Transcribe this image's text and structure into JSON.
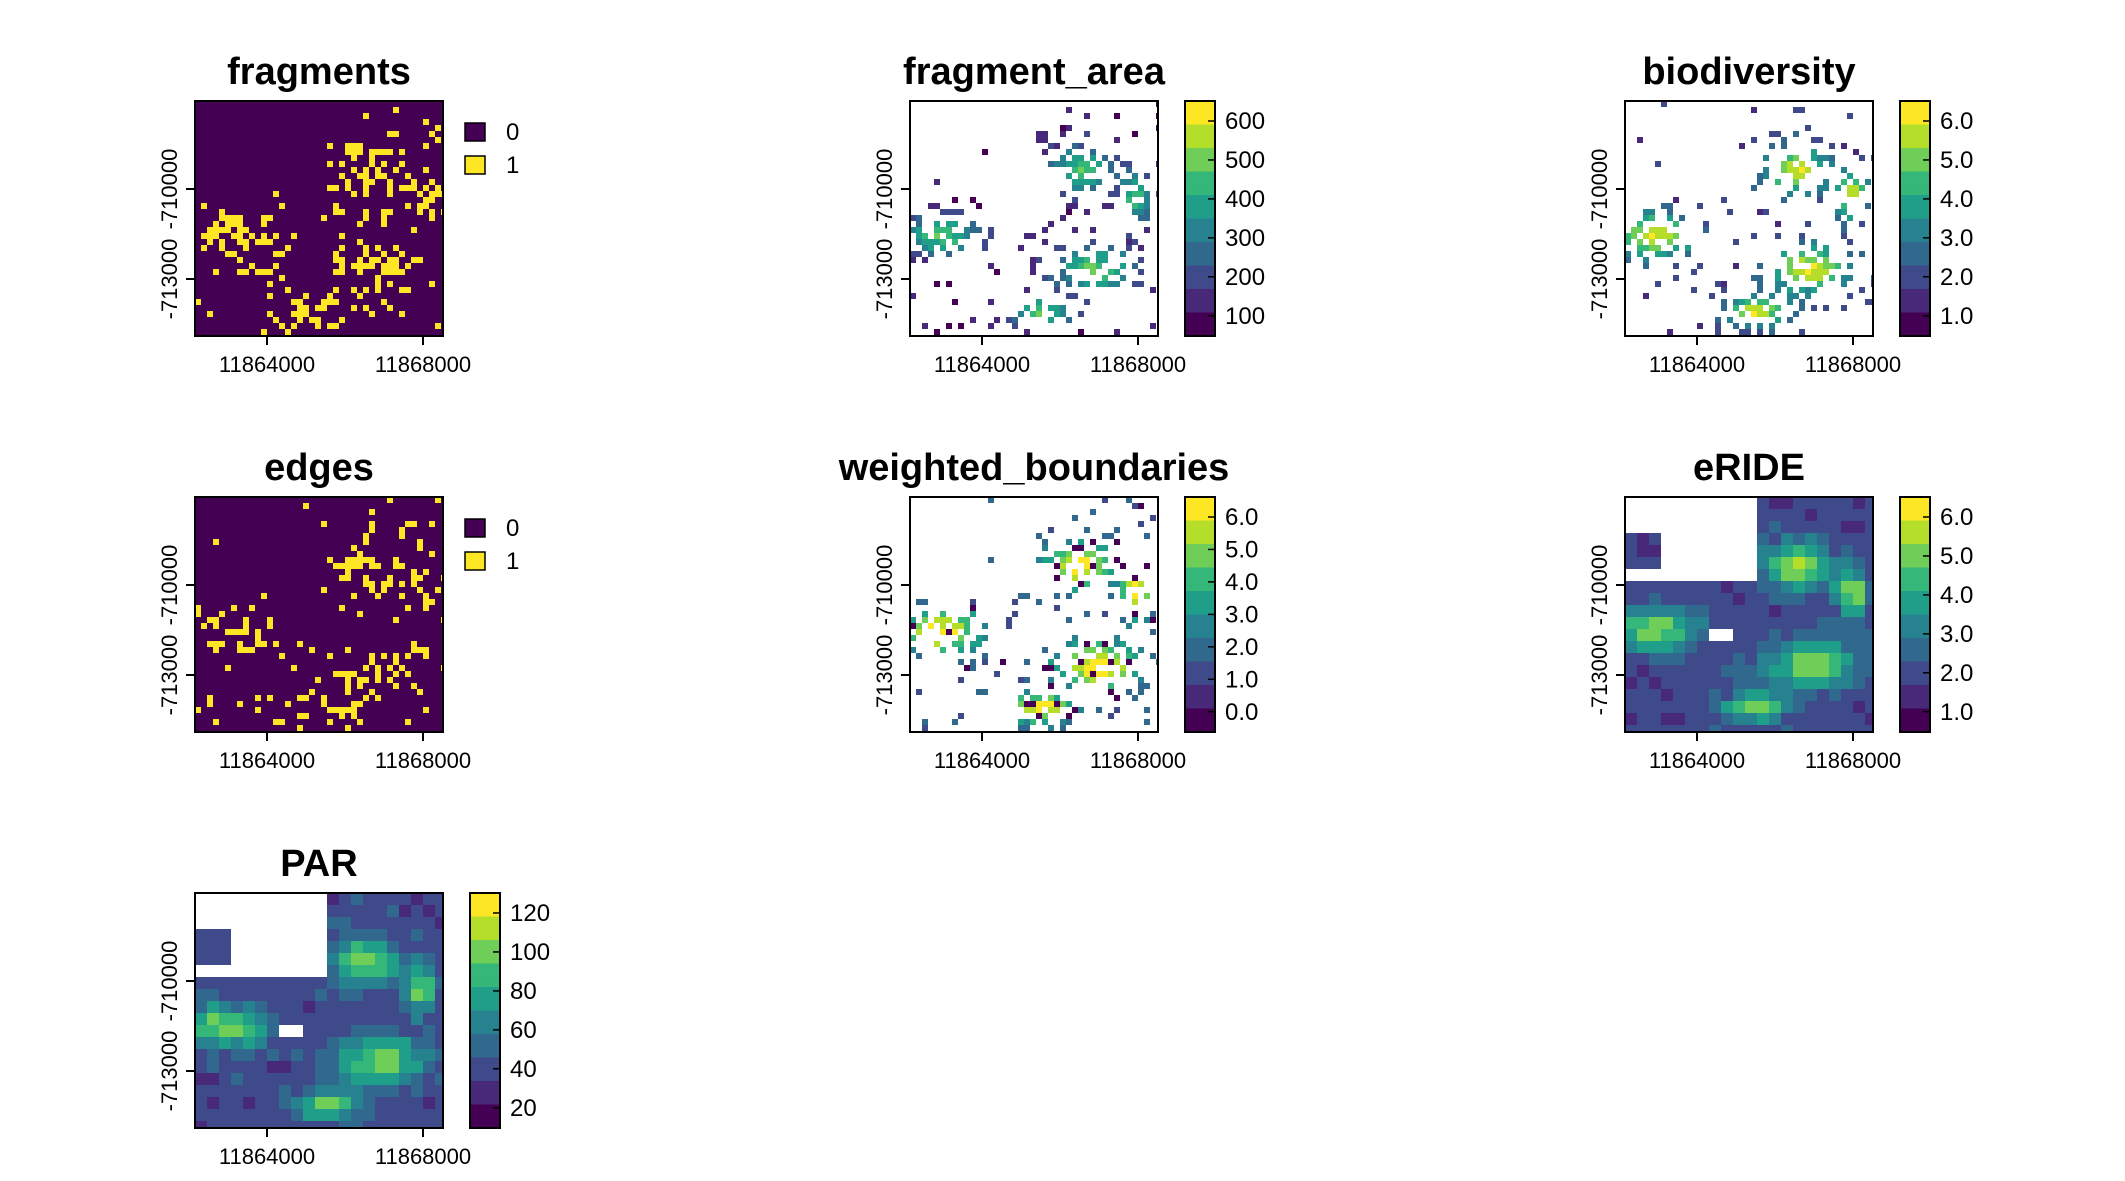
{
  "colors": {
    "viridis": [
      "#440154",
      "#482878",
      "#3e4a89",
      "#31688e",
      "#26828e",
      "#1f9e89",
      "#35b779",
      "#6ece58",
      "#b5de2b",
      "#fde725"
    ]
  },
  "chart_data": [
    {
      "type": "heatmap",
      "title": "fragments",
      "x_ticks": [
        "11864000",
        "11868000"
      ],
      "y_ticks": [
        "-710000",
        "-713000"
      ],
      "legend": {
        "kind": "categorical",
        "entries": [
          "0",
          "1"
        ]
      }
    },
    {
      "type": "heatmap",
      "title": "fragment_area",
      "x_ticks": [
        "11864000",
        "11868000"
      ],
      "y_ticks": [
        "-710000",
        "-713000"
      ],
      "legend": {
        "kind": "continuous",
        "ticks": [
          "600",
          "500",
          "400",
          "300",
          "200",
          "100"
        ]
      }
    },
    {
      "type": "heatmap",
      "title": "biodiversity",
      "x_ticks": [
        "11864000",
        "11868000"
      ],
      "y_ticks": [
        "-710000",
        "-713000"
      ],
      "legend": {
        "kind": "continuous",
        "ticks": [
          "6.0",
          "5.0",
          "4.0",
          "3.0",
          "2.0",
          "1.0"
        ]
      }
    },
    {
      "type": "heatmap",
      "title": "edges",
      "x_ticks": [
        "11864000",
        "11868000"
      ],
      "y_ticks": [
        "-710000",
        "-713000"
      ],
      "legend": {
        "kind": "categorical",
        "entries": [
          "0",
          "1"
        ]
      }
    },
    {
      "type": "heatmap",
      "title": "weighted_boundaries",
      "x_ticks": [
        "11864000",
        "11868000"
      ],
      "y_ticks": [
        "-710000",
        "-713000"
      ],
      "legend": {
        "kind": "continuous",
        "ticks": [
          "6.0",
          "5.0",
          "4.0",
          "3.0",
          "2.0",
          "1.0",
          "0.0"
        ]
      }
    },
    {
      "type": "heatmap",
      "title": "eRIDE",
      "x_ticks": [
        "11864000",
        "11868000"
      ],
      "y_ticks": [
        "-710000",
        "-713000"
      ],
      "legend": {
        "kind": "continuous",
        "ticks": [
          "6.0",
          "5.0",
          "4.0",
          "3.0",
          "2.0",
          "1.0"
        ]
      }
    },
    {
      "type": "heatmap",
      "title": "PAR",
      "x_ticks": [
        "11864000",
        "11868000"
      ],
      "y_ticks": [
        "-710000",
        "-713000"
      ],
      "legend": {
        "kind": "continuous",
        "ticks": [
          "120",
          "100",
          "80",
          "60",
          "40",
          "20"
        ]
      }
    }
  ]
}
